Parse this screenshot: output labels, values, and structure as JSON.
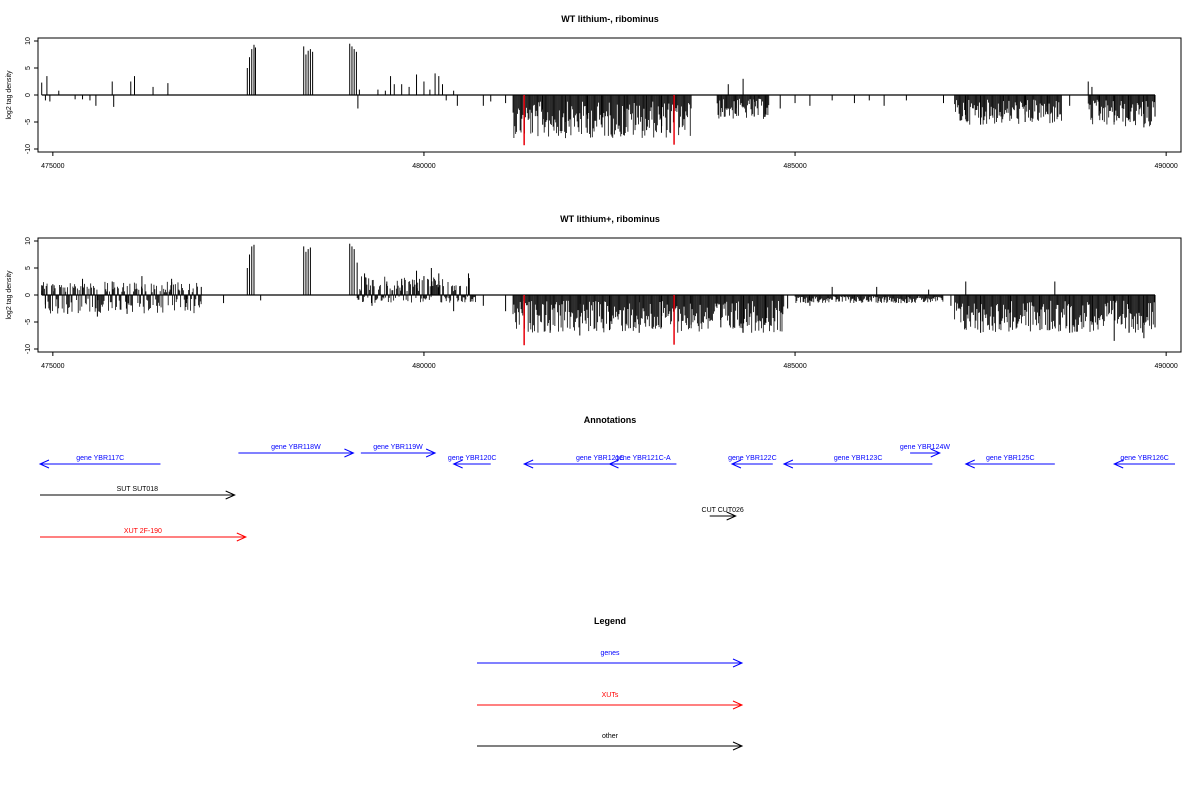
{
  "chart_data": [
    {
      "type": "bar",
      "title": "WT lithium-, ribominus",
      "ylabel": "log2 tag density",
      "xlim": [
        474800,
        490200
      ],
      "ylim": [
        -10,
        10
      ],
      "yticks": [
        10,
        5,
        0,
        -5,
        -10
      ],
      "xticks": [
        475000,
        480000,
        485000,
        490000
      ],
      "bars": [
        [
          474850,
          2.3
        ],
        [
          474900,
          -1.0
        ],
        [
          474920,
          3.5
        ],
        [
          474960,
          -1.2
        ],
        [
          475080,
          0.8
        ],
        [
          475300,
          -0.8
        ],
        [
          475400,
          -0.8
        ],
        [
          475500,
          -1.0
        ],
        [
          475580,
          -2.0
        ],
        [
          475800,
          2.5
        ],
        [
          475820,
          -2.2
        ],
        [
          476050,
          2.5
        ],
        [
          476100,
          3.5
        ],
        [
          476350,
          1.5
        ],
        [
          476550,
          2.2
        ],
        [
          477620,
          5.0
        ],
        [
          477650,
          7.0
        ],
        [
          477680,
          8.5
        ],
        [
          477710,
          9.3
        ],
        [
          477730,
          8.8
        ],
        [
          478380,
          9.0
        ],
        [
          478410,
          7.5
        ],
        [
          478440,
          8.2
        ],
        [
          478470,
          8.5
        ],
        [
          478500,
          8.0
        ],
        [
          479000,
          9.5
        ],
        [
          479030,
          9.0
        ],
        [
          479060,
          8.5
        ],
        [
          479090,
          8.0
        ],
        [
          479110,
          -2.5
        ],
        [
          479130,
          1.0
        ],
        [
          479380,
          1.0
        ],
        [
          479480,
          0.8
        ],
        [
          479550,
          3.5
        ],
        [
          479600,
          2.0
        ],
        [
          479700,
          2.0
        ],
        [
          479800,
          1.5
        ],
        [
          479900,
          3.8
        ],
        [
          480000,
          2.5
        ],
        [
          480080,
          1.0
        ],
        [
          480150,
          4.0
        ],
        [
          480200,
          3.5
        ],
        [
          480250,
          2.0
        ],
        [
          480300,
          -1.0
        ],
        [
          480400,
          0.8
        ],
        [
          480450,
          -2.0
        ],
        [
          480800,
          -2.0
        ],
        [
          480900,
          -1.2
        ],
        [
          481100,
          -1.5
        ],
        [
          481350,
          -3.5
        ],
        [
          481600,
          -5.5
        ],
        [
          481900,
          -5.0
        ],
        [
          482200,
          -7.0
        ],
        [
          482400,
          -6.0
        ],
        [
          482700,
          -7.5
        ],
        [
          483000,
          -6.5
        ],
        [
          483200,
          -7.0
        ],
        [
          484000,
          -4.0
        ],
        [
          484100,
          2.0
        ],
        [
          484200,
          -3.5
        ],
        [
          484300,
          3.0
        ],
        [
          484450,
          -4.0
        ],
        [
          484600,
          -3.5
        ],
        [
          484800,
          -2.5
        ],
        [
          485000,
          -1.5
        ],
        [
          485200,
          -2.0
        ],
        [
          485500,
          -1.0
        ],
        [
          485800,
          -1.5
        ],
        [
          486000,
          -1.0
        ],
        [
          486200,
          -2.0
        ],
        [
          486500,
          -1.0
        ],
        [
          487000,
          -1.5
        ],
        [
          487300,
          -4.5
        ],
        [
          487500,
          -5.5
        ],
        [
          487800,
          -4.0
        ],
        [
          488100,
          -5.0
        ],
        [
          488400,
          -3.5
        ],
        [
          488700,
          -2.0
        ],
        [
          488950,
          2.5
        ],
        [
          489000,
          1.5
        ],
        [
          489100,
          -3.0
        ],
        [
          489300,
          -5.0
        ],
        [
          489500,
          -4.5
        ],
        [
          489700,
          -6.0
        ],
        [
          489850,
          -4.0
        ]
      ],
      "dense_blocks": [
        {
          "x_start": 481200,
          "x_end": 483600,
          "ymin": -8.0,
          "ymax": 0
        },
        {
          "x_start": 483950,
          "x_end": 484650,
          "ymin": -4.5,
          "ymax": 0
        },
        {
          "x_start": 487150,
          "x_end": 488600,
          "ymin": -5.5,
          "ymax": 0
        },
        {
          "x_start": 488950,
          "x_end": 489850,
          "ymin": -6.0,
          "ymax": 0
        }
      ],
      "highlights": [
        {
          "x": 481350,
          "y": -9.3,
          "color": "#e8000b"
        },
        {
          "x": 483370,
          "y": -9.2,
          "color": "#e8000b"
        }
      ]
    },
    {
      "type": "bar",
      "title": "WT lithium+, ribominus",
      "ylabel": "log2 tag density",
      "xlim": [
        474800,
        490200
      ],
      "ylim": [
        -10,
        10
      ],
      "yticks": [
        10,
        5,
        0,
        -5,
        -10
      ],
      "xticks": [
        475000,
        480000,
        485000,
        490000
      ],
      "bars": [
        [
          474850,
          1.8
        ],
        [
          474900,
          -2.5
        ],
        [
          475000,
          2.0
        ],
        [
          475200,
          -3.5
        ],
        [
          475400,
          3.0
        ],
        [
          475600,
          -4.0
        ],
        [
          475800,
          2.5
        ],
        [
          476000,
          -3.5
        ],
        [
          476200,
          3.5
        ],
        [
          476400,
          -2.0
        ],
        [
          476600,
          3.0
        ],
        [
          476800,
          -1.5
        ],
        [
          477000,
          1.5
        ],
        [
          477300,
          -1.5
        ],
        [
          477620,
          5.0
        ],
        [
          477650,
          7.5
        ],
        [
          477680,
          9.0
        ],
        [
          477710,
          9.3
        ],
        [
          477800,
          -1.0
        ],
        [
          478380,
          9.0
        ],
        [
          478410,
          8.0
        ],
        [
          478440,
          8.5
        ],
        [
          478470,
          8.8
        ],
        [
          479000,
          9.5
        ],
        [
          479030,
          9.0
        ],
        [
          479060,
          8.5
        ],
        [
          479100,
          6.0
        ],
        [
          479200,
          4.0
        ],
        [
          479300,
          -2.0
        ],
        [
          479500,
          2.5
        ],
        [
          479700,
          3.0
        ],
        [
          479900,
          4.5
        ],
        [
          480000,
          3.5
        ],
        [
          480100,
          5.0
        ],
        [
          480200,
          4.0
        ],
        [
          480400,
          -3.0
        ],
        [
          480600,
          4.0
        ],
        [
          480800,
          -2.0
        ],
        [
          481100,
          -3.0
        ],
        [
          481350,
          -6.0
        ],
        [
          481700,
          -7.0
        ],
        [
          482100,
          -7.5
        ],
        [
          482500,
          -6.5
        ],
        [
          482900,
          -7.0
        ],
        [
          483200,
          -6.0
        ],
        [
          483600,
          -5.5
        ],
        [
          484000,
          -6.0
        ],
        [
          484300,
          -7.0
        ],
        [
          484600,
          -5.0
        ],
        [
          484900,
          -2.5
        ],
        [
          485200,
          -2.0
        ],
        [
          485500,
          1.5
        ],
        [
          485800,
          -1.0
        ],
        [
          486100,
          1.5
        ],
        [
          486500,
          -1.5
        ],
        [
          486800,
          1.0
        ],
        [
          487100,
          -2.0
        ],
        [
          487300,
          2.5
        ],
        [
          487500,
          -7.0
        ],
        [
          487900,
          -6.0
        ],
        [
          488300,
          -6.5
        ],
        [
          488500,
          2.5
        ],
        [
          488700,
          -7.0
        ],
        [
          489000,
          -5.5
        ],
        [
          489300,
          -8.5
        ],
        [
          489500,
          -7.0
        ],
        [
          489700,
          -8.0
        ],
        [
          489850,
          -6.0
        ]
      ],
      "dense_blocks": [
        {
          "x_start": 474850,
          "x_end": 477000,
          "ymin": -3.5,
          "ymax": 2.5
        },
        {
          "x_start": 479100,
          "x_end": 480700,
          "ymin": -1.5,
          "ymax": 3.5
        },
        {
          "x_start": 481200,
          "x_end": 484850,
          "ymin": -7.0,
          "ymax": 0
        },
        {
          "x_start": 485000,
          "x_end": 487000,
          "ymin": -1.5,
          "ymax": 0
        },
        {
          "x_start": 487150,
          "x_end": 489850,
          "ymin": -7.0,
          "ymax": 0
        }
      ],
      "highlights": [
        {
          "x": 481350,
          "y": -9.3,
          "color": "#e8000b"
        },
        {
          "x": 483370,
          "y": -9.2,
          "color": "#e8000b"
        }
      ]
    }
  ],
  "annotations": {
    "title": "Annotations",
    "features": [
      {
        "label": "gene YBR117C",
        "strand": "-",
        "start": 474800,
        "end": 476450,
        "row": 1,
        "color": "#0000ff"
      },
      {
        "label": "gene YBR118W",
        "strand": "+",
        "start": 477500,
        "end": 479050,
        "row": 0,
        "color": "#0000ff"
      },
      {
        "label": "gene YBR119W",
        "strand": "+",
        "start": 479150,
        "end": 480150,
        "row": 0,
        "color": "#0000ff"
      },
      {
        "label": "gene YBR120C",
        "strand": "-",
        "start": 480400,
        "end": 480900,
        "row": 1,
        "color": "#0000ff"
      },
      {
        "label": "gene YBR121C",
        "strand": "-",
        "start": 481350,
        "end": 483400,
        "row": 1,
        "color": "#0000ff"
      },
      {
        "label": "gene YBR121C-A",
        "strand": "-",
        "start": 482500,
        "end": 483400,
        "row": 1,
        "color": "#0000ff"
      },
      {
        "label": "gene YBR122C",
        "strand": "-",
        "start": 484150,
        "end": 484700,
        "row": 1,
        "color": "#0000ff"
      },
      {
        "label": "gene YBR123C",
        "strand": "-",
        "start": 484850,
        "end": 486850,
        "row": 1,
        "color": "#0000ff"
      },
      {
        "label": "gene YBR124W",
        "strand": "+",
        "start": 486550,
        "end": 486950,
        "row": 0,
        "color": "#0000ff"
      },
      {
        "label": "gene YBR125C",
        "strand": "-",
        "start": 487300,
        "end": 488500,
        "row": 1,
        "color": "#0000ff"
      },
      {
        "label": "gene YBR126C",
        "strand": "-",
        "start": 489300,
        "end": 490700,
        "row": 1,
        "color": "#0000ff"
      },
      {
        "label": "SUT SUT018",
        "strand": "+",
        "start": 474700,
        "end": 477450,
        "row": 2,
        "color": "#000000"
      },
      {
        "label": "CUT CUT026",
        "strand": "+",
        "start": 483850,
        "end": 484200,
        "row": 3,
        "color": "#000000"
      },
      {
        "label": "XUT 2F-190",
        "strand": "+",
        "start": 474700,
        "end": 477600,
        "row": 4,
        "color": "#ff0000"
      }
    ]
  },
  "legend": {
    "title": "Legend",
    "items": [
      {
        "label": "genes",
        "color": "#0000ff"
      },
      {
        "label": "XUTs",
        "color": "#ff0000"
      },
      {
        "label": "other",
        "color": "#000000"
      }
    ]
  }
}
